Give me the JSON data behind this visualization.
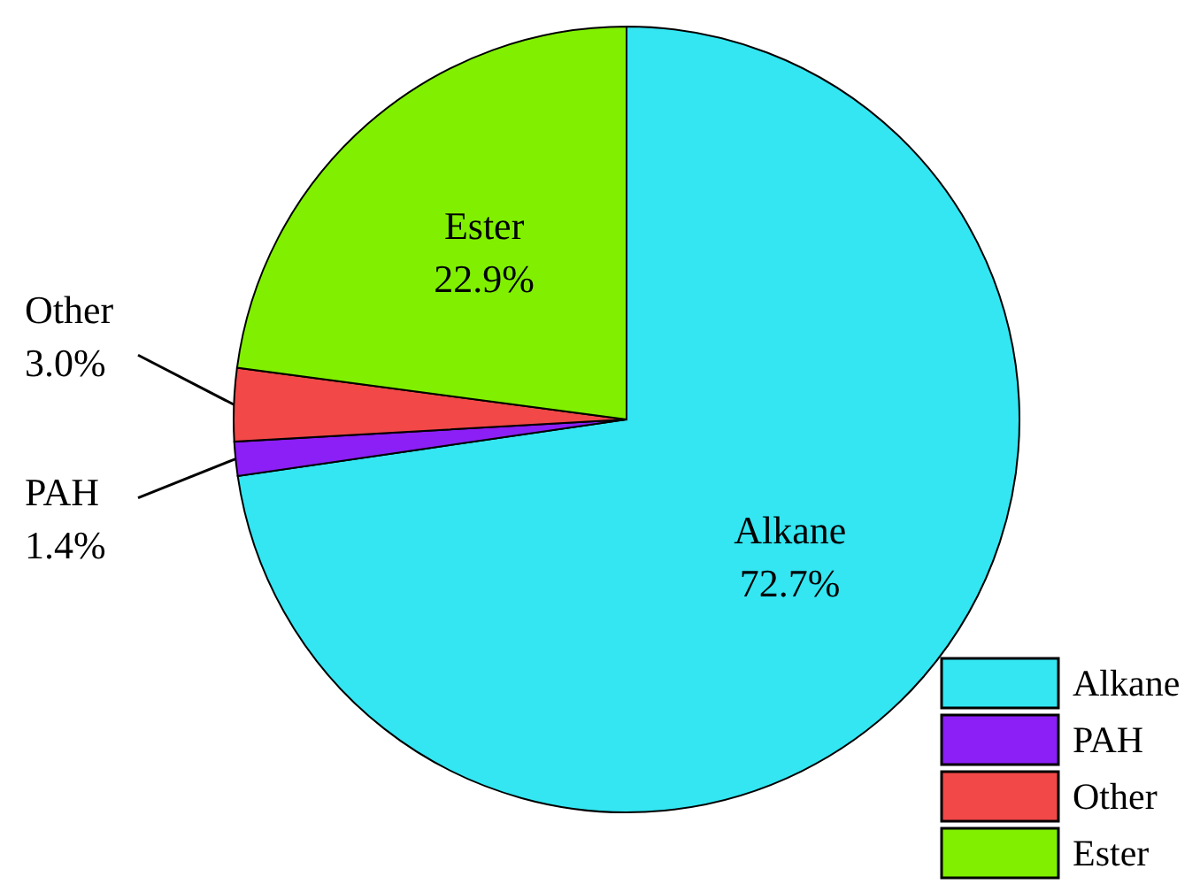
{
  "chart_data": {
    "type": "pie",
    "categories": [
      "Alkane",
      "PAH",
      "Other",
      "Ester"
    ],
    "values": [
      72.7,
      1.4,
      3.0,
      22.9
    ],
    "value_labels": [
      "72.7%",
      "1.4%",
      "3.0%",
      "22.9%"
    ],
    "colors": [
      "#33e6f2",
      "#8b1ff5",
      "#f24848",
      "#80f000"
    ],
    "legend": "bottom right"
  }
}
